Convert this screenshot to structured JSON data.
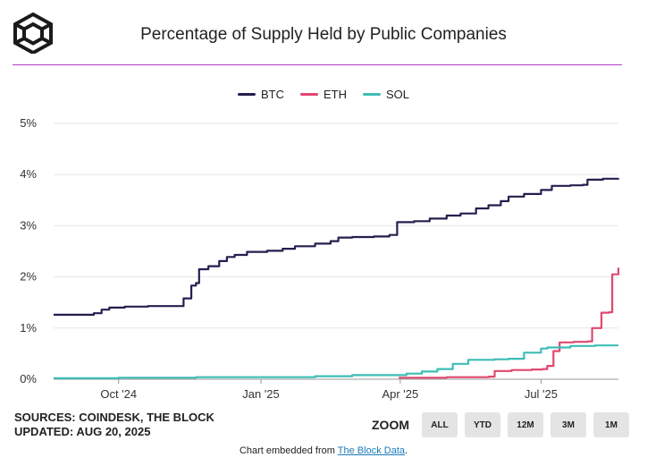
{
  "header": {
    "title": "Percentage of Supply Held by Public Companies"
  },
  "legend": [
    {
      "name": "BTC",
      "color": "#231f4f"
    },
    {
      "name": "ETH",
      "color": "#e0486e"
    },
    {
      "name": "SOL",
      "color": "#3dbdb6"
    }
  ],
  "footer": {
    "sources": "SOURCES: COINDESK, THE BLOCK",
    "updated": "UPDATED: AUG 20, 2025",
    "embed_prefix": "Chart embedded from ",
    "embed_link": "The Block Data",
    "embed_suffix": "."
  },
  "zoom": {
    "label": "ZOOM",
    "buttons": [
      "ALL",
      "YTD",
      "12M",
      "3M",
      "1M"
    ]
  },
  "chart_data": {
    "type": "line",
    "title": "Percentage of Supply Held by Public Companies",
    "xlabel": "",
    "ylabel": "",
    "x_range": [
      "2024-08-20",
      "2025-08-20"
    ],
    "ylim": [
      0,
      5
    ],
    "y_ticks": [
      "0%",
      "1%",
      "2%",
      "3%",
      "4%",
      "5%"
    ],
    "y_tick_values": [
      0,
      1,
      2,
      3,
      4,
      5
    ],
    "x_ticks": [
      "Oct '24",
      "Jan '25",
      "Apr '25",
      "Jul '25"
    ],
    "x_tick_dates": [
      "2024-10-01",
      "2025-01-01",
      "2025-04-01",
      "2025-07-01"
    ],
    "grid": true,
    "legend_position": "top-center",
    "series": [
      {
        "name": "BTC",
        "color": "#231f4f",
        "points": [
          [
            "2024-08-20",
            1.26
          ],
          [
            "2024-09-01",
            1.26
          ],
          [
            "2024-09-15",
            1.29
          ],
          [
            "2024-09-20",
            1.36
          ],
          [
            "2024-09-25",
            1.4
          ],
          [
            "2024-10-05",
            1.42
          ],
          [
            "2024-10-20",
            1.43
          ],
          [
            "2024-11-01",
            1.43
          ],
          [
            "2024-11-10",
            1.43
          ],
          [
            "2024-11-12",
            1.58
          ],
          [
            "2024-11-17",
            1.83
          ],
          [
            "2024-11-20",
            1.88
          ],
          [
            "2024-11-22",
            2.15
          ],
          [
            "2024-11-28",
            2.21
          ],
          [
            "2024-12-05",
            2.31
          ],
          [
            "2024-12-10",
            2.39
          ],
          [
            "2024-12-15",
            2.43
          ],
          [
            "2024-12-23",
            2.49
          ],
          [
            "2025-01-05",
            2.51
          ],
          [
            "2025-01-15",
            2.55
          ],
          [
            "2025-01-23",
            2.6
          ],
          [
            "2025-02-05",
            2.65
          ],
          [
            "2025-02-15",
            2.7
          ],
          [
            "2025-02-20",
            2.77
          ],
          [
            "2025-03-01",
            2.78
          ],
          [
            "2025-03-15",
            2.79
          ],
          [
            "2025-03-25",
            2.82
          ],
          [
            "2025-03-30",
            3.07
          ],
          [
            "2025-04-10",
            3.09
          ],
          [
            "2025-04-20",
            3.14
          ],
          [
            "2025-05-01",
            3.2
          ],
          [
            "2025-05-10",
            3.24
          ],
          [
            "2025-05-20",
            3.34
          ],
          [
            "2025-05-28",
            3.4
          ],
          [
            "2025-06-05",
            3.48
          ],
          [
            "2025-06-10",
            3.57
          ],
          [
            "2025-06-20",
            3.62
          ],
          [
            "2025-07-01",
            3.7
          ],
          [
            "2025-07-08",
            3.78
          ],
          [
            "2025-07-20",
            3.79
          ],
          [
            "2025-07-28",
            3.8
          ],
          [
            "2025-07-31",
            3.9
          ],
          [
            "2025-08-10",
            3.92
          ],
          [
            "2025-08-20",
            3.93
          ]
        ]
      },
      {
        "name": "ETH",
        "color": "#e0486e",
        "points": [
          [
            "2025-03-31",
            0.03
          ],
          [
            "2025-05-01",
            0.04
          ],
          [
            "2025-05-28",
            0.05
          ],
          [
            "2025-06-01",
            0.16
          ],
          [
            "2025-06-12",
            0.18
          ],
          [
            "2025-06-25",
            0.19
          ],
          [
            "2025-07-02",
            0.2
          ],
          [
            "2025-07-05",
            0.26
          ],
          [
            "2025-07-09",
            0.55
          ],
          [
            "2025-07-13",
            0.72
          ],
          [
            "2025-07-22",
            0.73
          ],
          [
            "2025-07-31",
            0.74
          ],
          [
            "2025-08-03",
            1.0
          ],
          [
            "2025-08-09",
            1.3
          ],
          [
            "2025-08-14",
            1.31
          ],
          [
            "2025-08-16",
            2.05
          ],
          [
            "2025-08-20",
            2.18
          ]
        ]
      },
      {
        "name": "SOL",
        "color": "#3dbdb6",
        "points": [
          [
            "2024-08-20",
            0.02
          ],
          [
            "2024-10-01",
            0.03
          ],
          [
            "2024-11-20",
            0.04
          ],
          [
            "2025-01-01",
            0.04
          ],
          [
            "2025-02-05",
            0.06
          ],
          [
            "2025-03-01",
            0.08
          ],
          [
            "2025-03-25",
            0.08
          ],
          [
            "2025-04-05",
            0.11
          ],
          [
            "2025-04-15",
            0.15
          ],
          [
            "2025-04-25",
            0.2
          ],
          [
            "2025-05-05",
            0.3
          ],
          [
            "2025-05-15",
            0.38
          ],
          [
            "2025-06-01",
            0.39
          ],
          [
            "2025-06-10",
            0.4
          ],
          [
            "2025-06-20",
            0.52
          ],
          [
            "2025-07-01",
            0.6
          ],
          [
            "2025-07-05",
            0.62
          ],
          [
            "2025-07-20",
            0.65
          ],
          [
            "2025-08-05",
            0.66
          ],
          [
            "2025-08-20",
            0.66
          ]
        ]
      }
    ]
  }
}
